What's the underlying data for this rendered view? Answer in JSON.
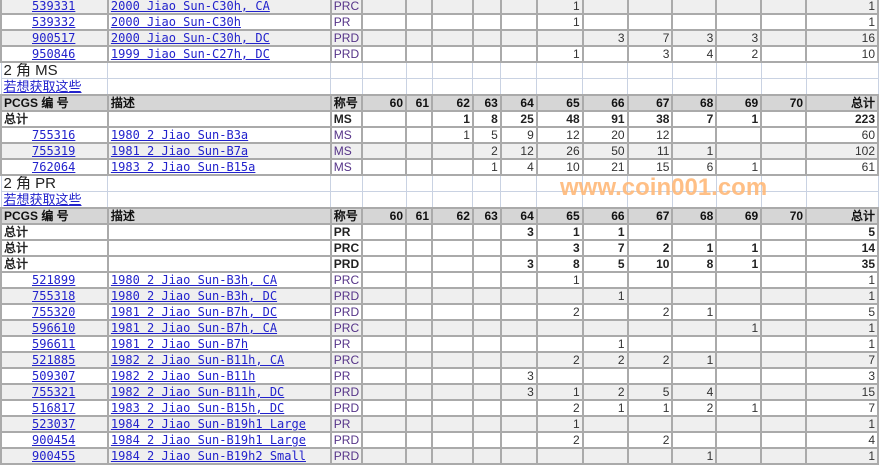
{
  "columns": {
    "id": "PCGS 编 号",
    "desc": "描述",
    "grade": "称号",
    "grades": [
      "60",
      "61",
      "62",
      "63",
      "64",
      "65",
      "66",
      "67",
      "68",
      "69",
      "70"
    ],
    "total": "总计"
  },
  "total_label": "总计",
  "watermark": "www.coin001.com",
  "sections": [
    {
      "title": null,
      "link": null,
      "totals": [],
      "rows": [
        {
          "id": "539331",
          "desc": "2000 Jiao Sun-C30h, CA",
          "grade": "PRC",
          "counts": [
            "",
            "",
            "",
            "",
            "",
            "1",
            "",
            "",
            "",
            "",
            ""
          ],
          "total": "1"
        },
        {
          "id": "539332",
          "desc": "2000 Jiao Sun-C30h",
          "grade": "PR",
          "counts": [
            "",
            "",
            "",
            "",
            "",
            "1",
            "",
            "",
            "",
            "",
            ""
          ],
          "total": "1"
        },
        {
          "id": "900517",
          "desc": "2000 Jiao Sun-C30h, DC",
          "grade": "PRD",
          "counts": [
            "",
            "",
            "",
            "",
            "",
            "",
            "3",
            "7",
            "3",
            "3",
            ""
          ],
          "total": "16"
        },
        {
          "id": "950846",
          "desc": "1999 Jiao Sun-C27h, DC",
          "grade": "PRD",
          "counts": [
            "",
            "",
            "",
            "",
            "",
            "1",
            "",
            "3",
            "4",
            "2",
            ""
          ],
          "total": "10"
        }
      ]
    },
    {
      "title": "2 角  MS",
      "link": "若想获取这些",
      "totals": [
        {
          "grade": "MS",
          "counts": [
            "",
            "",
            "1",
            "8",
            "25",
            "48",
            "91",
            "38",
            "7",
            "1",
            ""
          ],
          "total": "223"
        }
      ],
      "rows": [
        {
          "id": "755316",
          "desc": "1980 2 Jiao Sun-B3a",
          "grade": "MS",
          "counts": [
            "",
            "",
            "1",
            "5",
            "9",
            "12",
            "20",
            "12",
            "",
            "",
            ""
          ],
          "total": "60"
        },
        {
          "id": "755319",
          "desc": "1981 2 Jiao Sun-B7a",
          "grade": "MS",
          "counts": [
            "",
            "",
            "",
            "2",
            "12",
            "26",
            "50",
            "11",
            "1",
            "",
            ""
          ],
          "total": "102"
        },
        {
          "id": "762064",
          "desc": "1983 2 Jiao Sun-B15a",
          "grade": "MS",
          "counts": [
            "",
            "",
            "",
            "1",
            "4",
            "10",
            "21",
            "15",
            "6",
            "1",
            ""
          ],
          "total": "61"
        }
      ]
    },
    {
      "title": "2 角  PR",
      "link": "若想获取这些",
      "totals": [
        {
          "grade": "PR",
          "counts": [
            "",
            "",
            "",
            "",
            "3",
            "1",
            "1",
            "",
            "",
            "",
            ""
          ],
          "total": "5"
        },
        {
          "grade": "PRC",
          "counts": [
            "",
            "",
            "",
            "",
            "",
            "3",
            "7",
            "2",
            "1",
            "1",
            ""
          ],
          "total": "14"
        },
        {
          "grade": "PRD",
          "counts": [
            "",
            "",
            "",
            "",
            "3",
            "8",
            "5",
            "10",
            "8",
            "1",
            ""
          ],
          "total": "35"
        }
      ],
      "rows": [
        {
          "id": "521899",
          "desc": "1980 2 Jiao Sun-B3h, CA",
          "grade": "PRC",
          "counts": [
            "",
            "",
            "",
            "",
            "",
            "1",
            "",
            "",
            "",
            "",
            ""
          ],
          "total": "1"
        },
        {
          "id": "755318",
          "desc": "1980 2 Jiao Sun-B3h, DC",
          "grade": "PRD",
          "counts": [
            "",
            "",
            "",
            "",
            "",
            "",
            "1",
            "",
            "",
            "",
            ""
          ],
          "total": "1"
        },
        {
          "id": "755320",
          "desc": "1981 2 Jiao Sun-B7h, DC",
          "grade": "PRD",
          "counts": [
            "",
            "",
            "",
            "",
            "",
            "2",
            "",
            "2",
            "1",
            "",
            ""
          ],
          "total": "5"
        },
        {
          "id": "596610",
          "desc": "1981 2 Jiao Sun-B7h, CA",
          "grade": "PRC",
          "counts": [
            "",
            "",
            "",
            "",
            "",
            "",
            "",
            "",
            "",
            "1",
            ""
          ],
          "total": "1"
        },
        {
          "id": "596611",
          "desc": "1981 2 Jiao Sun-B7h",
          "grade": "PR",
          "counts": [
            "",
            "",
            "",
            "",
            "",
            "",
            "1",
            "",
            "",
            "",
            ""
          ],
          "total": "1"
        },
        {
          "id": "521885",
          "desc": "1982 2 Jiao Sun-B11h, CA",
          "grade": "PRC",
          "counts": [
            "",
            "",
            "",
            "",
            "",
            "2",
            "2",
            "2",
            "1",
            "",
            ""
          ],
          "total": "7"
        },
        {
          "id": "509307",
          "desc": "1982 2 Jiao Sun-B11h",
          "grade": "PR",
          "counts": [
            "",
            "",
            "",
            "",
            "3",
            "",
            "",
            "",
            "",
            "",
            ""
          ],
          "total": "3"
        },
        {
          "id": "755321",
          "desc": "1982 2 Jiao Sun-B11h, DC",
          "grade": "PRD",
          "counts": [
            "",
            "",
            "",
            "",
            "3",
            "1",
            "2",
            "5",
            "4",
            "",
            ""
          ],
          "total": "15"
        },
        {
          "id": "516817",
          "desc": "1983 2 Jiao Sun-B15h, DC",
          "grade": "PRD",
          "counts": [
            "",
            "",
            "",
            "",
            "",
            "2",
            "1",
            "1",
            "2",
            "1",
            ""
          ],
          "total": "7"
        },
        {
          "id": "523037",
          "desc": "1984 2 Jiao Sun-B19h1 Large",
          "grade": "PR",
          "counts": [
            "",
            "",
            "",
            "",
            "",
            "1",
            "",
            "",
            "",
            "",
            ""
          ],
          "total": "1"
        },
        {
          "id": "900454",
          "desc": "1984 2 Jiao Sun-B19h1 Large",
          "grade": "PRD",
          "counts": [
            "",
            "",
            "",
            "",
            "",
            "2",
            "",
            "2",
            "",
            "",
            ""
          ],
          "total": "4"
        },
        {
          "id": "900455",
          "desc": "1984 2 Jiao Sun-B19h2 Small",
          "grade": "PRD",
          "counts": [
            "",
            "",
            "",
            "",
            "",
            "",
            "",
            "",
            "1",
            "",
            ""
          ],
          "total": "1"
        }
      ]
    }
  ]
}
